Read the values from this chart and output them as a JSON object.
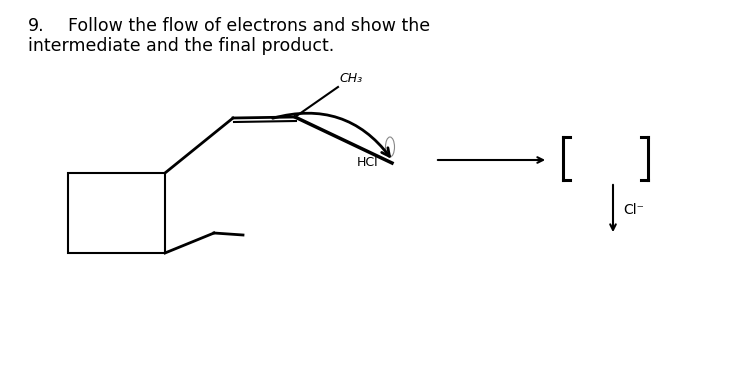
{
  "title_num": "9.",
  "title_text": "Follow the flow of electrons and show the",
  "title_text2": "intermediate and the final product.",
  "bg_color": "#ffffff",
  "text_color": "#000000",
  "ch3_label": "CH₃",
  "hcl_label": "HCl",
  "cl_minus_label": "Cl⁻",
  "title_fontsize": 12.5,
  "label_fontsize": 9,
  "fig_w": 7.5,
  "fig_h": 3.65,
  "dpi": 100
}
